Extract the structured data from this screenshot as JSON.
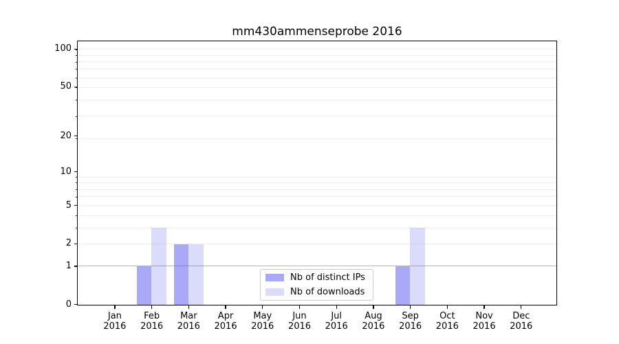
{
  "chart_data": {
    "type": "bar",
    "title": "mm430ammenseprobe 2016",
    "x_tick_year": "2016",
    "categories": [
      "Jan",
      "Feb",
      "Mar",
      "Apr",
      "May",
      "Jun",
      "Jul",
      "Aug",
      "Sep",
      "Oct",
      "Nov",
      "Dec"
    ],
    "series": [
      {
        "name": "Nb of distinct IPs",
        "color": "rgba(90,90,240,0.52)",
        "values": [
          0,
          1,
          2,
          0,
          0,
          0,
          0,
          0,
          1,
          0,
          0,
          0
        ]
      },
      {
        "name": "Nb of downloads",
        "color": "rgba(90,90,240,0.22)",
        "values": [
          0,
          3,
          2,
          0,
          0,
          0,
          0,
          0,
          3,
          0,
          0,
          0
        ]
      }
    ],
    "yscale": "log10(1 + value)",
    "y_ticks": [
      0,
      1,
      2,
      5,
      10,
      20,
      50,
      100
    ],
    "ylim": [
      0,
      115
    ],
    "grid": {
      "emphasized_value": 1,
      "emphasized_color": "#b4b4b4",
      "minor_values": [
        2,
        3,
        4,
        5,
        6,
        7,
        8,
        9,
        19,
        29,
        39,
        49,
        59,
        69,
        79,
        89,
        99
      ],
      "minor_color": "#ededed"
    },
    "legend_position": "lower center",
    "spine_color": "#000000"
  }
}
